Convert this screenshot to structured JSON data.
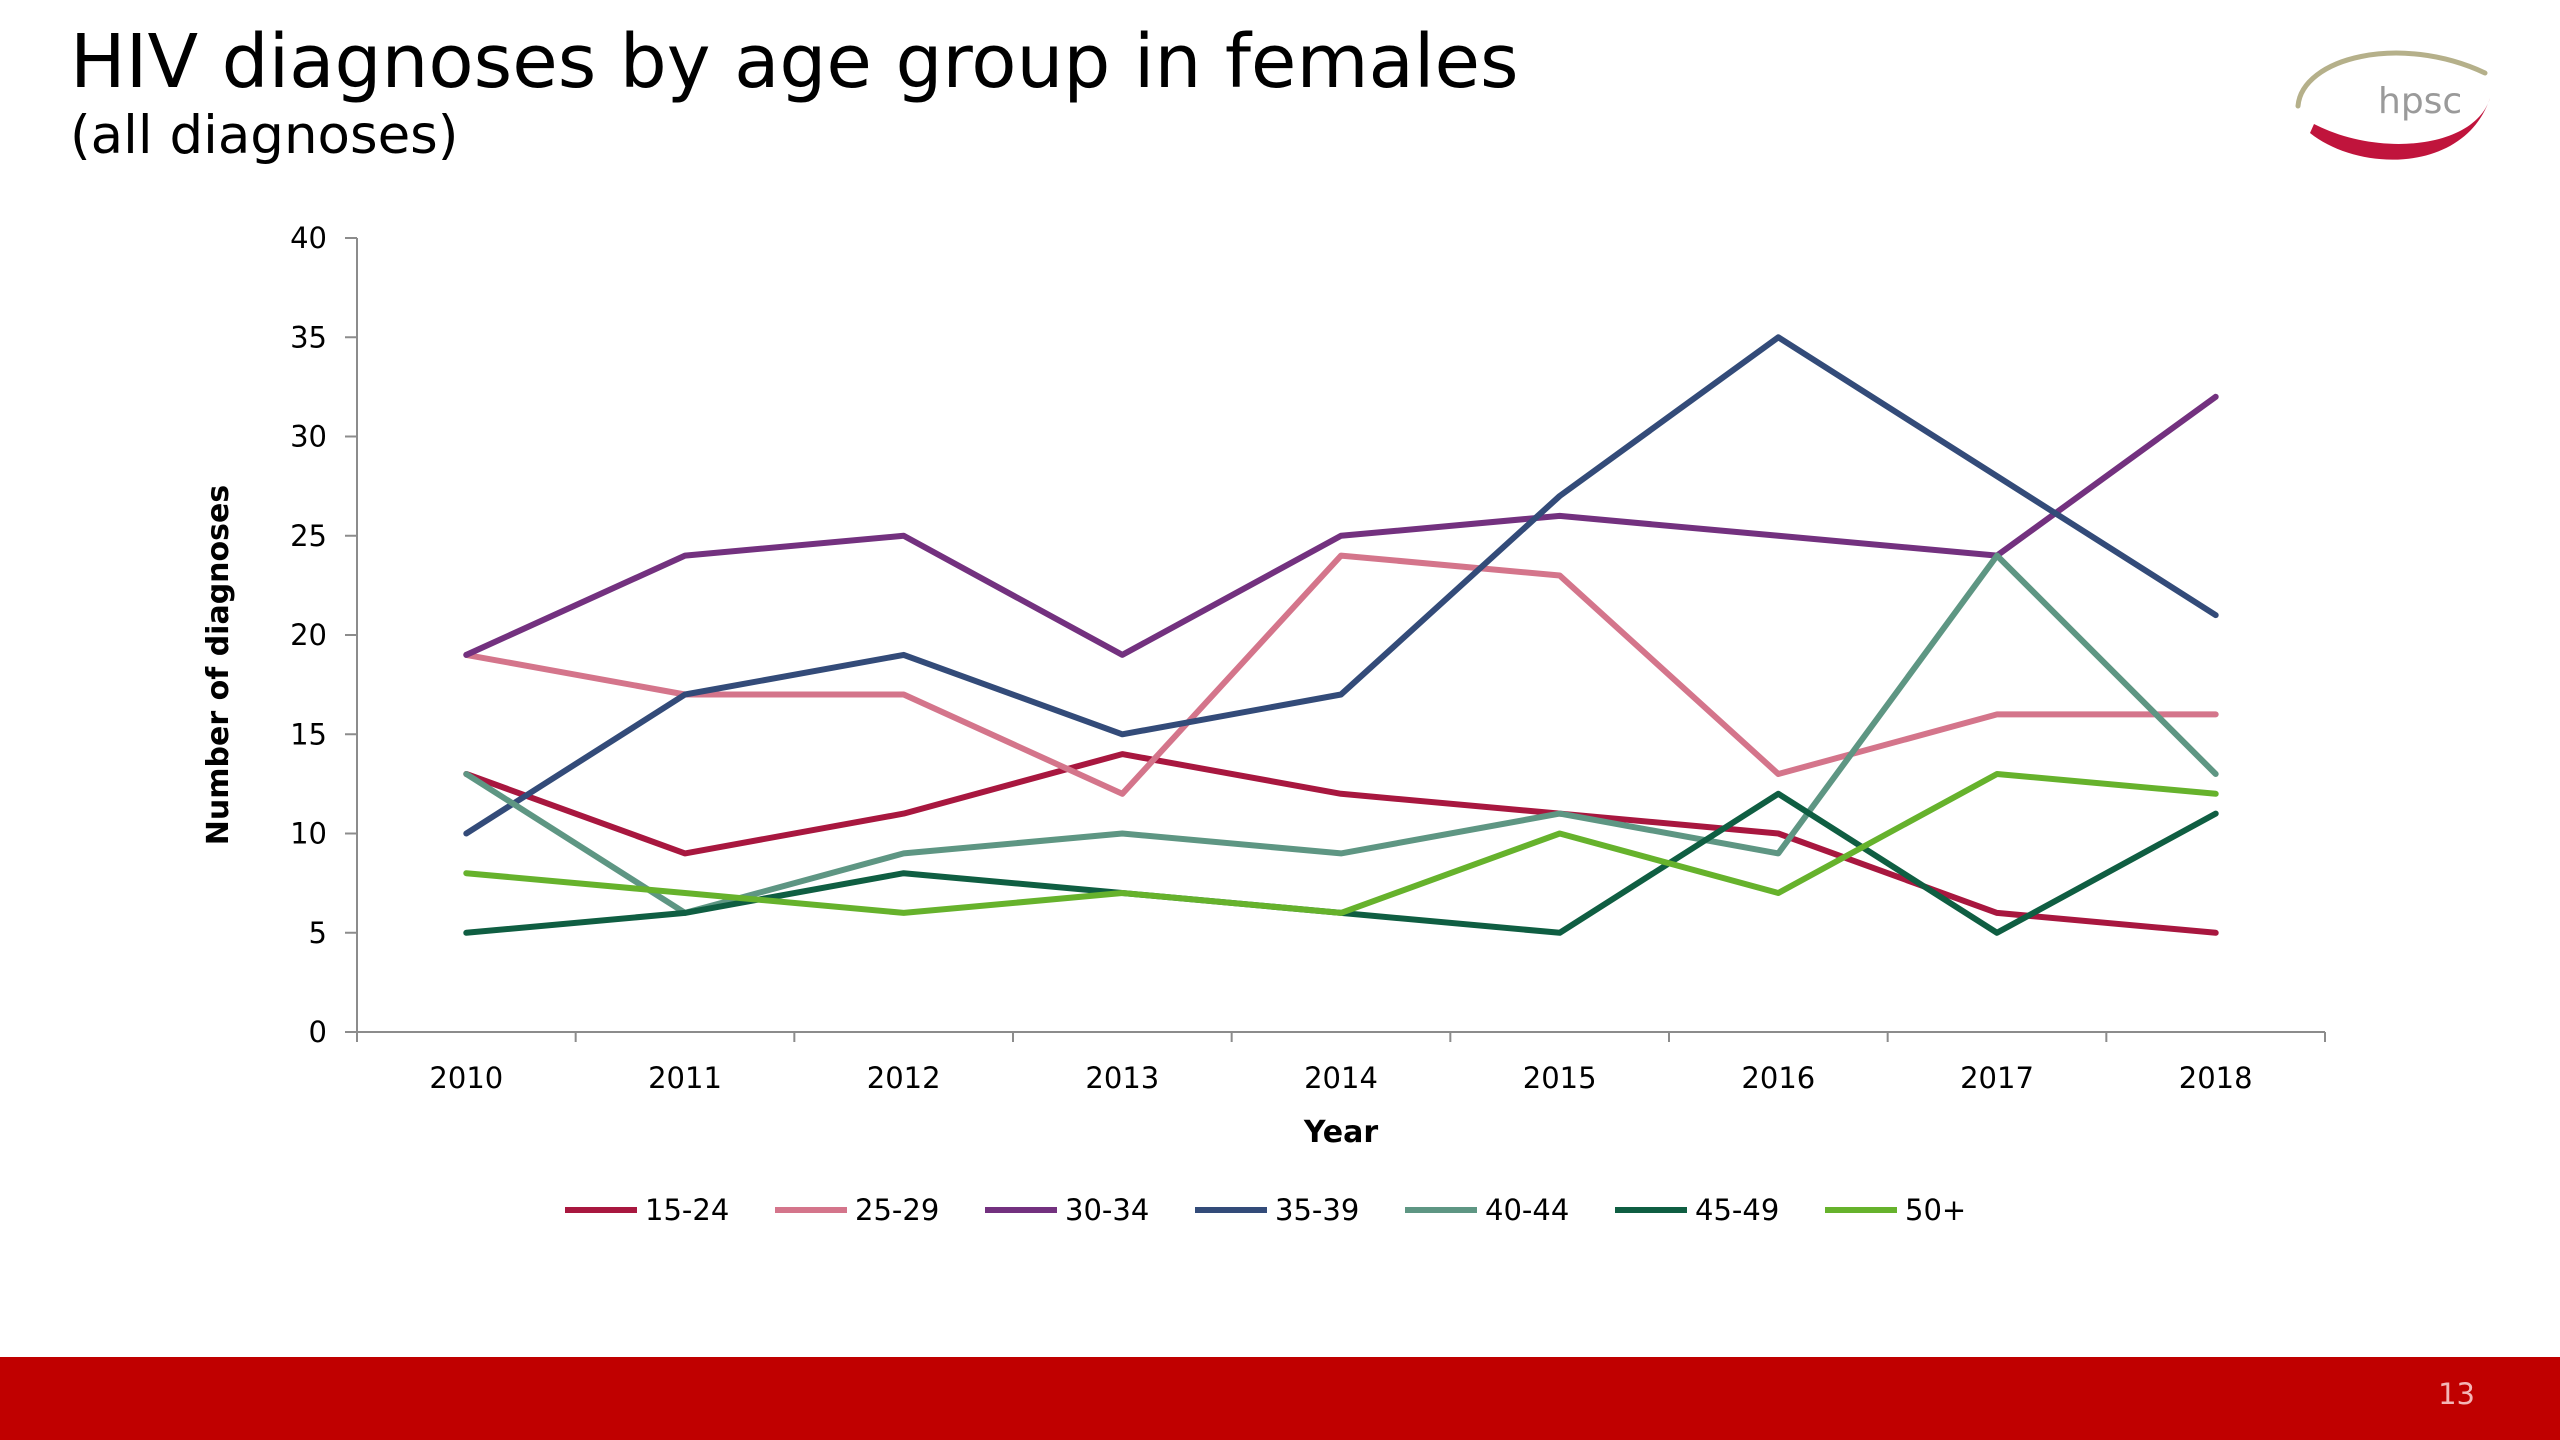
{
  "slide": {
    "title": "HIV diagnoses by age group in females",
    "subtitle": "(all diagnoses)",
    "logo_text": "hpsc",
    "page_number": "13",
    "colors": {
      "footer": "#c00000",
      "logo_red": "#c0143c",
      "logo_olive": "#b5b08a"
    }
  },
  "chart_data": {
    "type": "line",
    "title": "",
    "xlabel": "Year",
    "ylabel": "Number of diagnoses",
    "x": [
      "2010",
      "2011",
      "2012",
      "2013",
      "2014",
      "2015",
      "2016",
      "2017",
      "2018"
    ],
    "ylim": [
      0,
      40
    ],
    "yticks": [
      0,
      5,
      10,
      15,
      20,
      25,
      30,
      35,
      40
    ],
    "grid": false,
    "legend_position": "bottom",
    "series": [
      {
        "name": "15-24",
        "color": "#a8173f",
        "values": [
          13,
          9,
          11,
          14,
          12,
          11,
          10,
          6,
          5
        ]
      },
      {
        "name": "25-29",
        "color": "#d4758b",
        "values": [
          19,
          17,
          17,
          12,
          24,
          23,
          13,
          16,
          16
        ]
      },
      {
        "name": "30-34",
        "color": "#73317f",
        "values": [
          19,
          24,
          25,
          19,
          25,
          26,
          25,
          24,
          32
        ]
      },
      {
        "name": "35-39",
        "color": "#334b79",
        "values": [
          10,
          17,
          19,
          15,
          17,
          27,
          35,
          28,
          21
        ]
      },
      {
        "name": "40-44",
        "color": "#5e9683",
        "values": [
          13,
          6,
          9,
          10,
          9,
          11,
          9,
          24,
          13
        ]
      },
      {
        "name": "45-49",
        "color": "#0f5e42",
        "values": [
          5,
          6,
          8,
          7,
          6,
          5,
          12,
          5,
          11
        ]
      },
      {
        "name": "50+",
        "color": "#66b22c",
        "values": [
          8,
          7,
          6,
          7,
          6,
          10,
          7,
          13,
          12
        ]
      }
    ]
  }
}
